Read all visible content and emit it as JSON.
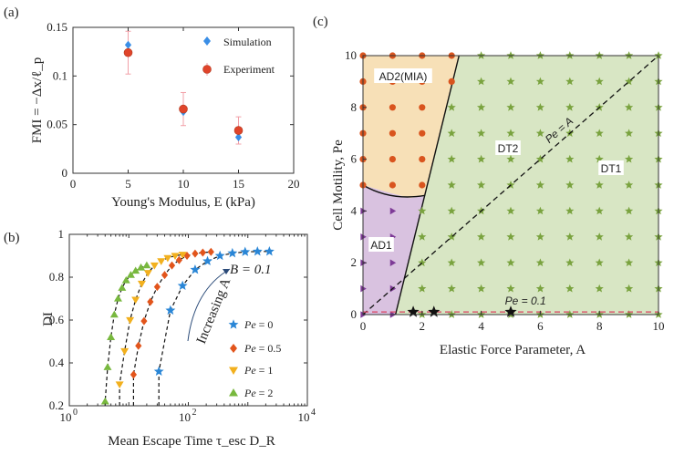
{
  "colors": {
    "simulation": "#3a8ee6",
    "experiment": "#e0442a",
    "errorbar": "#f2a0a8",
    "pe0": "#2a86d6",
    "pe05": "#e2551c",
    "pe1": "#f2b01e",
    "pe2": "#78b83e",
    "ad2_fill": "#f7e0b7",
    "ad1_fill": "#d9c2e0",
    "dt_fill": "#d8e6c4",
    "dot_ad2": "#d9541e",
    "tri_ad1": "#7e3b97",
    "star_dt": "#7aa33f",
    "pe01_line": "#d94060"
  },
  "chart_data": [
    {
      "panel": "(a)",
      "type": "scatter",
      "xlabel": "Young's Modulus, E (kPa)",
      "ylabel": "FMI = −Δx/ℓ_p",
      "xlim": [
        0,
        20
      ],
      "ylim": [
        0,
        0.15
      ],
      "xticks": [
        "0",
        "5",
        "10",
        "15",
        "20"
      ],
      "yticks": [
        "0",
        "0.05",
        "0.1",
        "0.15"
      ],
      "series": [
        {
          "name": "Simulation",
          "x": [
            5,
            10,
            15
          ],
          "y": [
            0.132,
            0.063,
            0.037
          ]
        },
        {
          "name": "Experiment",
          "x": [
            5,
            10,
            15
          ],
          "y": [
            0.124,
            0.066,
            0.044
          ],
          "err": [
            0.022,
            0.017,
            0.014
          ]
        }
      ]
    },
    {
      "panel": "(b)",
      "type": "line",
      "xscale": "log",
      "xlabel": "Mean Escape Time τ_esc D_R",
      "ylabel": "DI",
      "xlim": [
        1,
        10000
      ],
      "ylim": [
        0.2,
        1.0
      ],
      "xticks": [
        "10",
        "10",
        "10"
      ],
      "xtick_exp": [
        "0",
        "2",
        "4"
      ],
      "yticks": [
        "0.2",
        "0.4",
        "0.6",
        "0.8",
        "1"
      ],
      "annotation_B": "B = 0.1",
      "annotation_arrow": "Increasing A",
      "series": [
        {
          "name": "Pe = 0",
          "label_pre": "Pe",
          "label_val": " = 0",
          "marker": "star",
          "x": [
            32,
            50,
            80,
            130,
            210,
            340,
            550,
            900,
            1450,
            2300
          ],
          "y": [
            0.36,
            0.645,
            0.76,
            0.835,
            0.875,
            0.9,
            0.912,
            0.918,
            0.92,
            0.92
          ]
        },
        {
          "name": "Pe = 0.5",
          "label_pre": "Pe",
          "label_val": " = 0.5",
          "marker": "diamond",
          "x": [
            12,
            14.5,
            18,
            23,
            30,
            40,
            53,
            70,
            95,
            130,
            175,
            240
          ],
          "y": [
            0.345,
            0.48,
            0.595,
            0.685,
            0.755,
            0.81,
            0.855,
            0.88,
            0.9,
            0.91,
            0.915,
            0.918
          ]
        },
        {
          "name": "Pe = 1",
          "label_pre": "Pe",
          "label_val": " = 1",
          "marker": "triangle-down",
          "x": [
            7,
            8.5,
            10.5,
            13,
            16.5,
            21,
            27,
            35,
            45,
            60,
            80
          ],
          "y": [
            0.3,
            0.455,
            0.6,
            0.695,
            0.77,
            0.82,
            0.855,
            0.875,
            0.89,
            0.9,
            0.905
          ]
        },
        {
          "name": "Pe = 2",
          "label_pre": "Pe",
          "label_val": " = 2",
          "marker": "triangle-up",
          "x": [
            4,
            4.4,
            5,
            5.7,
            6.6,
            7.7,
            9,
            10.8,
            13,
            16,
            20
          ],
          "y": [
            0.22,
            0.38,
            0.52,
            0.625,
            0.7,
            0.75,
            0.785,
            0.81,
            0.83,
            0.845,
            0.855
          ]
        }
      ]
    },
    {
      "panel": "(c)",
      "type": "scatter",
      "xlabel": "Elastic Force Parameter, A",
      "ylabel": "Cell Motility, Pe",
      "xlim": [
        0,
        10
      ],
      "ylim": [
        0,
        10
      ],
      "xticks": [
        "0",
        "2",
        "4",
        "6",
        "8",
        "10"
      ],
      "yticks": [
        "0",
        "2",
        "4",
        "6",
        "8",
        "10"
      ],
      "regions": [
        "AD2(MIA)",
        "AD1",
        "DT2",
        "DT1"
      ],
      "line_diag_label": "Pe = A",
      "line_pe01_label": "Pe = 0.1",
      "black_stars": [
        {
          "A": 1.7,
          "Pe": 0.1
        },
        {
          "A": 2.4,
          "Pe": 0.1
        },
        {
          "A": 5.0,
          "Pe": 0.1
        }
      ]
    }
  ],
  "panels": {
    "a": "(a)",
    "b": "(b)",
    "c": "(c)"
  }
}
